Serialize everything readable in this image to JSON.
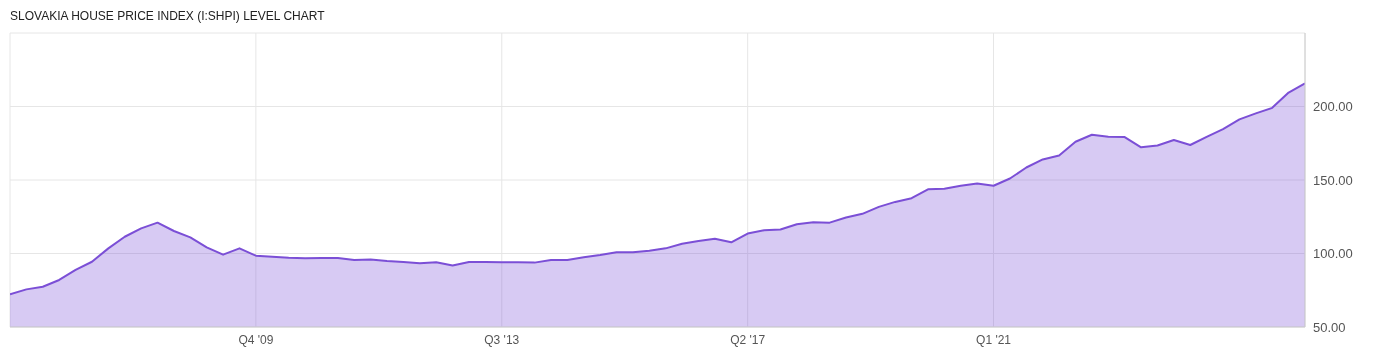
{
  "chart_data": {
    "type": "area",
    "title": "SLOVAKIA HOUSE PRICE INDEX (I:SHPI) LEVEL CHART",
    "categories": [
      null,
      null,
      null,
      null,
      null,
      null,
      null,
      null,
      null,
      null,
      null,
      null,
      null,
      null,
      null,
      "Q4 '09",
      null,
      null,
      null,
      null,
      null,
      null,
      null,
      null,
      null,
      null,
      null,
      null,
      null,
      null,
      "Q3 '13",
      null,
      null,
      null,
      null,
      null,
      null,
      null,
      null,
      null,
      null,
      null,
      null,
      null,
      null,
      "Q2 '17",
      null,
      null,
      null,
      null,
      null,
      null,
      null,
      null,
      null,
      null,
      null,
      null,
      null,
      null,
      "Q1 '21",
      null,
      null,
      null,
      null,
      null,
      null,
      null,
      null,
      null,
      null,
      null,
      null,
      null,
      null,
      null,
      null,
      null,
      null,
      null
    ],
    "series": [
      {
        "color": "#7b4fd6",
        "values": [
          72.2,
          75.6,
          77.4,
          82,
          88.8,
          94.4,
          103.5,
          111.4,
          117.1,
          121,
          115.3,
          111,
          104.2,
          99.2,
          103.5,
          98.5,
          97.8,
          97.1,
          96.7,
          96.9,
          96.9,
          95.6,
          96,
          94.9,
          94.2,
          93.3,
          94,
          91.8,
          94.2,
          94.3,
          94,
          94,
          93.8,
          95.6,
          95.6,
          97.5,
          99,
          100.8,
          100.8,
          101.9,
          103.5,
          106.6,
          108.5,
          110,
          107.6,
          113.6,
          115.8,
          116.3,
          119.9,
          121.3,
          121,
          124.5,
          127,
          131.7,
          135.1,
          137.6,
          143.7,
          144,
          146.1,
          147.6,
          146.1,
          151,
          158.5,
          164,
          166.7,
          176,
          180.8,
          179.4,
          179.2,
          172.2,
          173.5,
          177.2,
          173.8,
          179.4,
          184.6,
          191.2,
          195.3,
          199.1,
          209.5,
          215.7
        ]
      }
    ],
    "ylim": [
      50,
      250
    ],
    "yticks": [
      {
        "value": 50,
        "label": "50.00"
      },
      {
        "value": 100,
        "label": "100.00"
      },
      {
        "value": 150,
        "label": "150.00"
      },
      {
        "value": 200,
        "label": "200.00"
      }
    ],
    "grid": true
  }
}
